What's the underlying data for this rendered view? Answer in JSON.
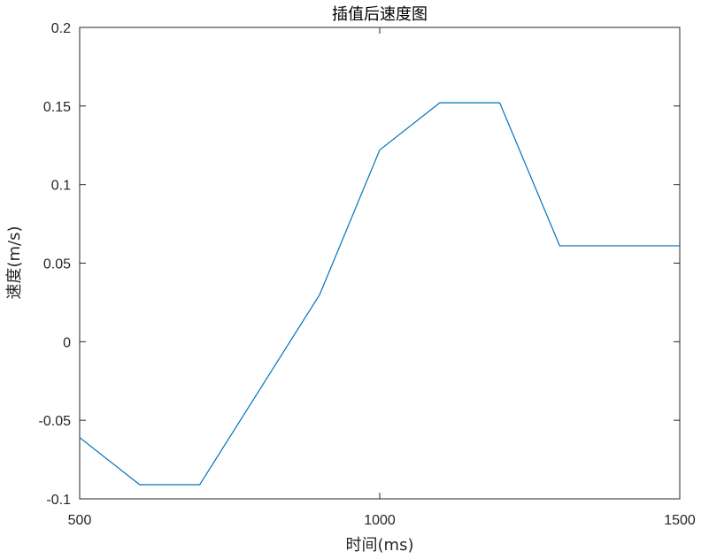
{
  "chart_data": {
    "type": "line",
    "title": "插值后速度图",
    "xlabel": "时间(ms)",
    "ylabel": "速度(m/s)",
    "xlim": [
      500,
      1500
    ],
    "ylim": [
      -0.1,
      0.2
    ],
    "xticks": [
      500,
      1000,
      1500
    ],
    "xtick_labels": [
      "500",
      "1000",
      "1500"
    ],
    "yticks": [
      -0.1,
      -0.05,
      0,
      0.05,
      0.1,
      0.15,
      0.2
    ],
    "ytick_labels": [
      "-0.1",
      "-0.05",
      "0",
      "0.05",
      "0.1",
      "0.15",
      "0.2"
    ],
    "grid": false,
    "series": [
      {
        "color": "#0072BD",
        "x": [
          500,
          600,
          700,
          900,
          1000,
          1100,
          1200,
          1300,
          1500
        ],
        "y": [
          -0.061,
          -0.091,
          -0.091,
          0.03,
          0.122,
          0.152,
          0.152,
          0.061,
          0.061
        ]
      }
    ]
  }
}
